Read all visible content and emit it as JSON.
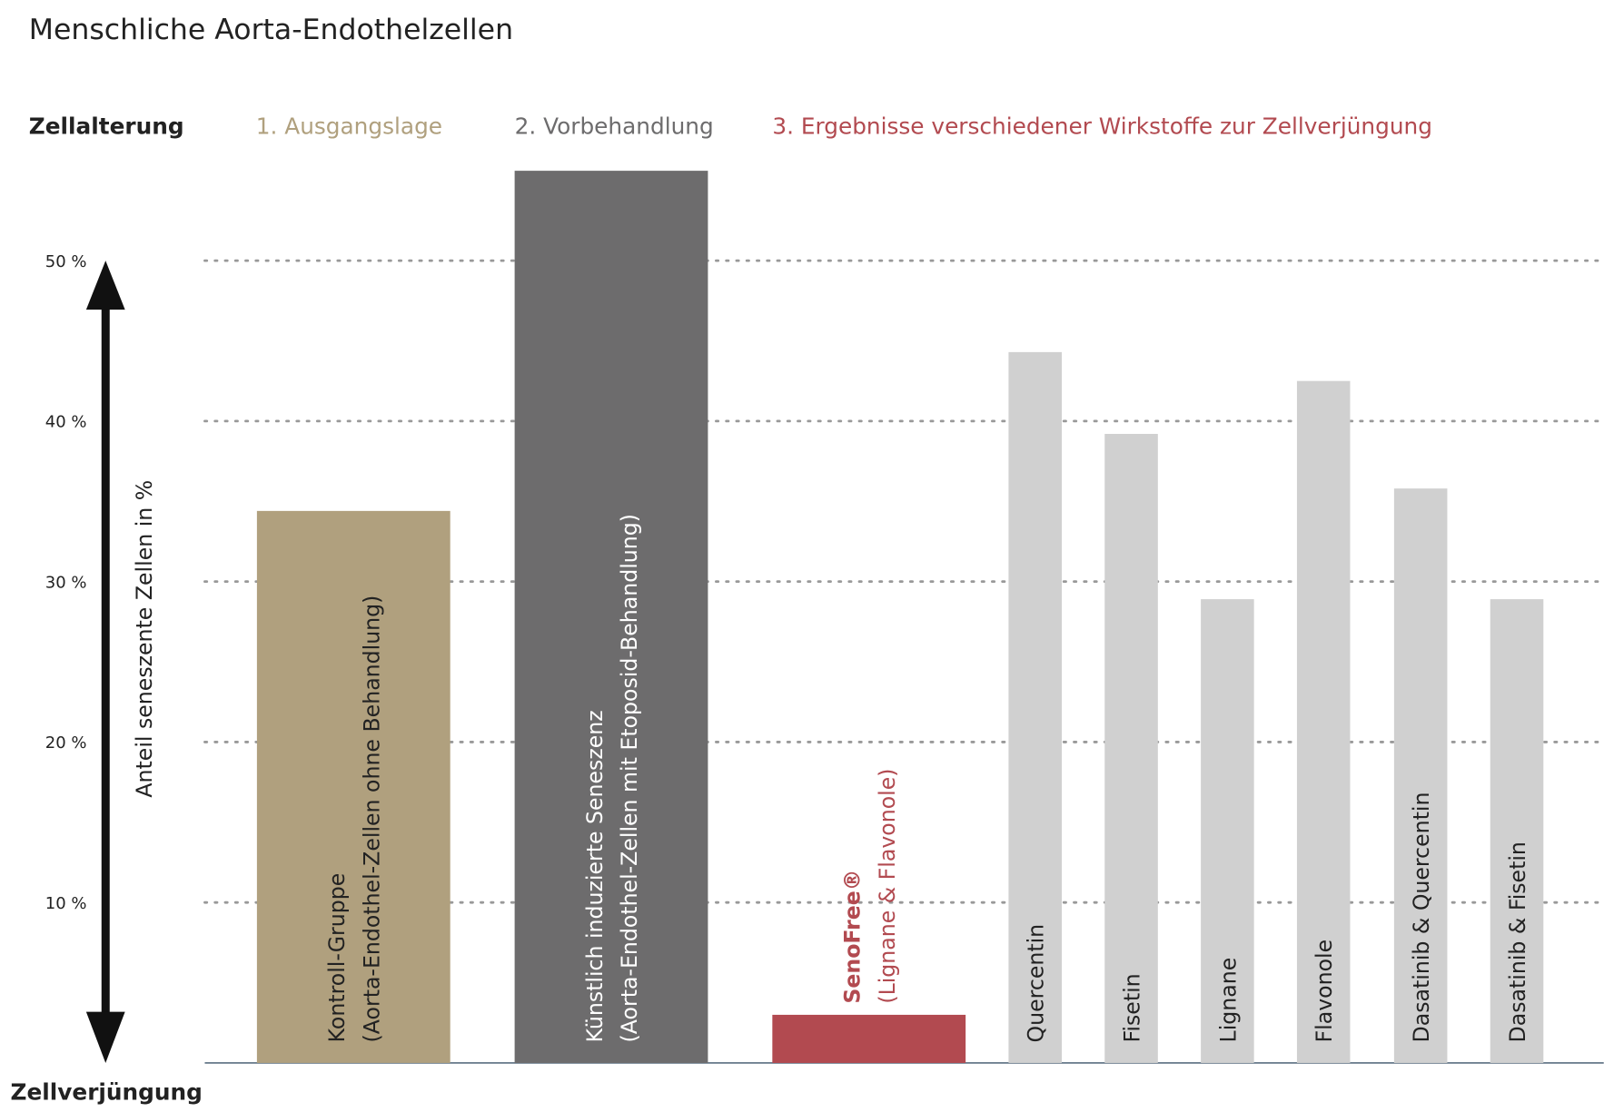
{
  "chart_data": {
    "type": "bar",
    "title": "Menschliche Aorta-Endothelzellen",
    "top_label": "Zellalterung",
    "bottom_label": "Zellverjüngung",
    "ylabel": "Anteil seneszente Zellen in %",
    "groups": [
      {
        "label": "1. Ausgangslage",
        "color": "#b0a07e"
      },
      {
        "label": "2. Vorbehandlung",
        "color": "#6d6c6d"
      },
      {
        "label": "3. Ergebnisse verschiedener Wirkstoffe zur Zellverjüngung",
        "color": "#b24a50"
      }
    ],
    "categories": [
      [
        "Kontroll-Gruppe",
        "(Aorta-Endothel-Zellen ohne Behandlung)"
      ],
      [
        "Künstlich induzierte Seneszenz",
        "(Aorta-Endothel-Zellen mit Etoposid-Behandlung)"
      ],
      [
        "SenoFree®",
        "(Lignane & Flavonole)"
      ],
      [
        "Quercentin"
      ],
      [
        "Fisetin"
      ],
      [
        "Lignane"
      ],
      [
        "Flavonole"
      ],
      [
        "Dasatinib & Quercentin"
      ],
      [
        "Dasatinib & Fisetin"
      ]
    ],
    "values": [
      34.4,
      55.6,
      3.0,
      44.3,
      39.2,
      28.9,
      42.5,
      35.8,
      28.9
    ],
    "colors": [
      "#b0a07e",
      "#6d6c6d",
      "#b24a50",
      "#d0d0d0",
      "#d0d0d0",
      "#d0d0d0",
      "#d0d0d0",
      "#d0d0d0",
      "#d0d0d0"
    ],
    "label_colors": [
      "#222222",
      "#ffffff",
      "#b24a50",
      "#222222",
      "#222222",
      "#222222",
      "#222222",
      "#222222",
      "#222222"
    ],
    "ylim": [
      0,
      56
    ],
    "yticks": [
      {
        "value": 10,
        "label": "10 %"
      },
      {
        "value": 20,
        "label": "20 %"
      },
      {
        "value": 30,
        "label": "30 %"
      },
      {
        "value": 40,
        "label": "40 %"
      },
      {
        "value": 50,
        "label": "50 %"
      }
    ],
    "grid": true
  }
}
